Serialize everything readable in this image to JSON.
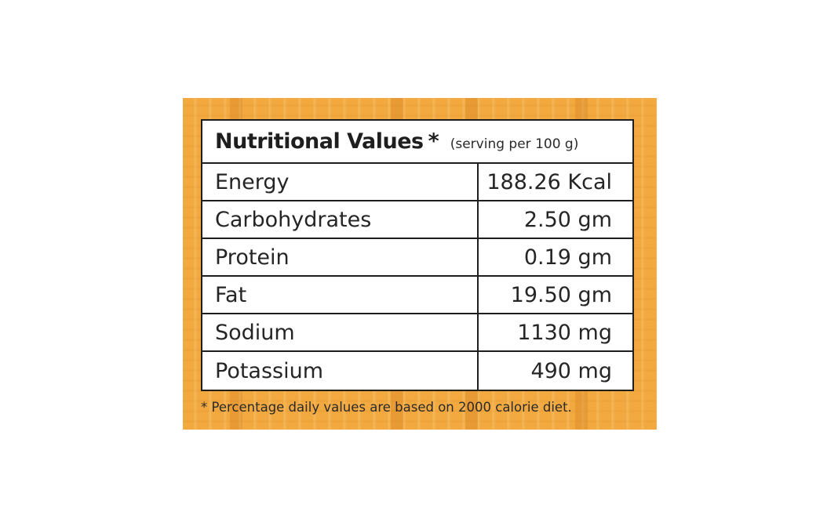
{
  "panel": {
    "background_color": "#f2a93f"
  },
  "table": {
    "title": "Nutritional Values",
    "asterisk": "*",
    "serving": "(serving per 100 g)",
    "rows": [
      {
        "name": "Energy",
        "value": "188.26 Kcal"
      },
      {
        "name": "Carbohydrates",
        "value": "2.50 gm"
      },
      {
        "name": "Protein",
        "value": "0.19 gm"
      },
      {
        "name": "Fat",
        "value": "19.50  gm"
      },
      {
        "name": "Sodium",
        "value": "1130 mg"
      },
      {
        "name": "Potassium",
        "value": "490 mg"
      }
    ]
  },
  "footnote": "* Percentage daily values are based on 2000 calorie diet."
}
